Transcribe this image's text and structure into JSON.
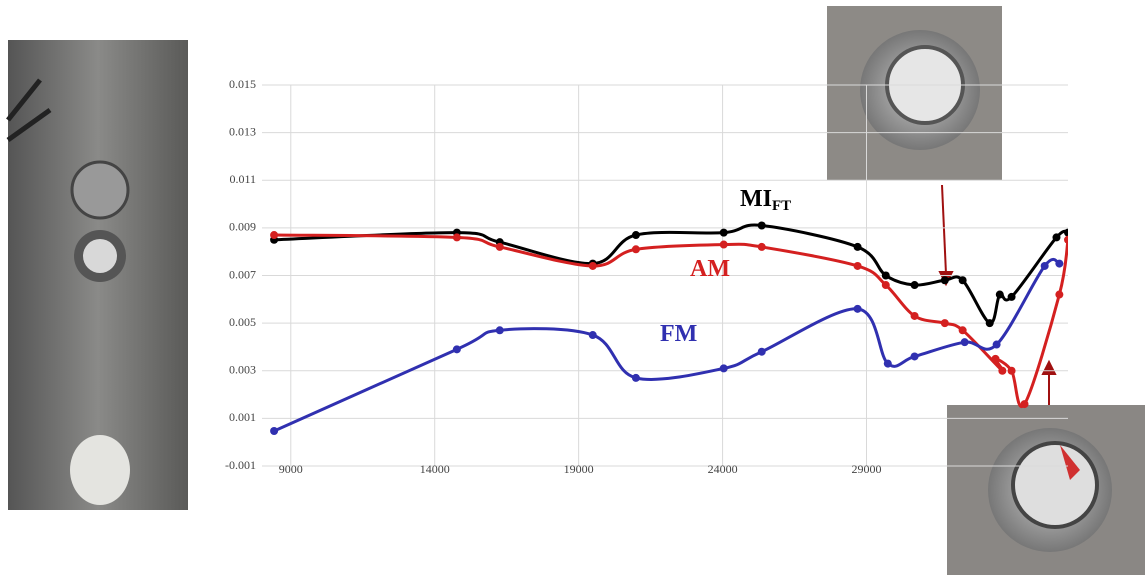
{
  "chart_data": {
    "type": "scatter-smooth",
    "xlim": [
      8000,
      36000
    ],
    "xticks": [
      9000,
      14000,
      19000,
      24000,
      29000
    ],
    "ylim": [
      -0.001,
      0.015
    ],
    "yticks": [
      -0.001,
      0.001,
      0.003,
      0.005,
      0.007,
      0.009,
      0.011,
      0.013,
      0.015
    ],
    "grid": true,
    "series": [
      {
        "name": "MI",
        "subscript": "FT",
        "color": "#000000",
        "x": [
          8420,
          14770,
          16260,
          19490,
          20990,
          24040,
          25360,
          28690,
          29670,
          30670,
          31720,
          32340,
          33280,
          33630,
          34040,
          35600,
          36000
        ],
        "values": [
          0.0085,
          0.0088,
          0.0084,
          0.0075,
          0.0087,
          0.0088,
          0.0091,
          0.0082,
          0.007,
          0.0066,
          0.0068,
          0.0068,
          0.005,
          0.0062,
          0.0061,
          0.0086,
          0.0088
        ]
      },
      {
        "name": "AM",
        "color": "#d42020",
        "x": [
          8420,
          14770,
          16260,
          19490,
          20990,
          24040,
          25360,
          28690,
          29670,
          30670,
          31720,
          32340,
          33720,
          33480,
          34040,
          34490,
          35700,
          36000
        ],
        "values": [
          0.0087,
          0.0086,
          0.0082,
          0.0074,
          0.0081,
          0.0083,
          0.0082,
          0.0074,
          0.0066,
          0.0053,
          0.005,
          0.0047,
          0.003,
          0.0035,
          0.003,
          0.0016,
          0.0062,
          0.0085
        ]
      },
      {
        "name": "FM",
        "color": "#3030b0",
        "x": [
          8420,
          14770,
          16260,
          19490,
          20990,
          24040,
          25360,
          28690,
          29740,
          30670,
          32410,
          33520,
          35190,
          35700
        ],
        "values": [
          0.00047,
          0.0039,
          0.0047,
          0.0045,
          0.0027,
          0.0031,
          0.0038,
          0.0056,
          0.0033,
          0.0036,
          0.0042,
          0.0041,
          0.0074,
          0.0075
        ]
      }
    ]
  }
}
